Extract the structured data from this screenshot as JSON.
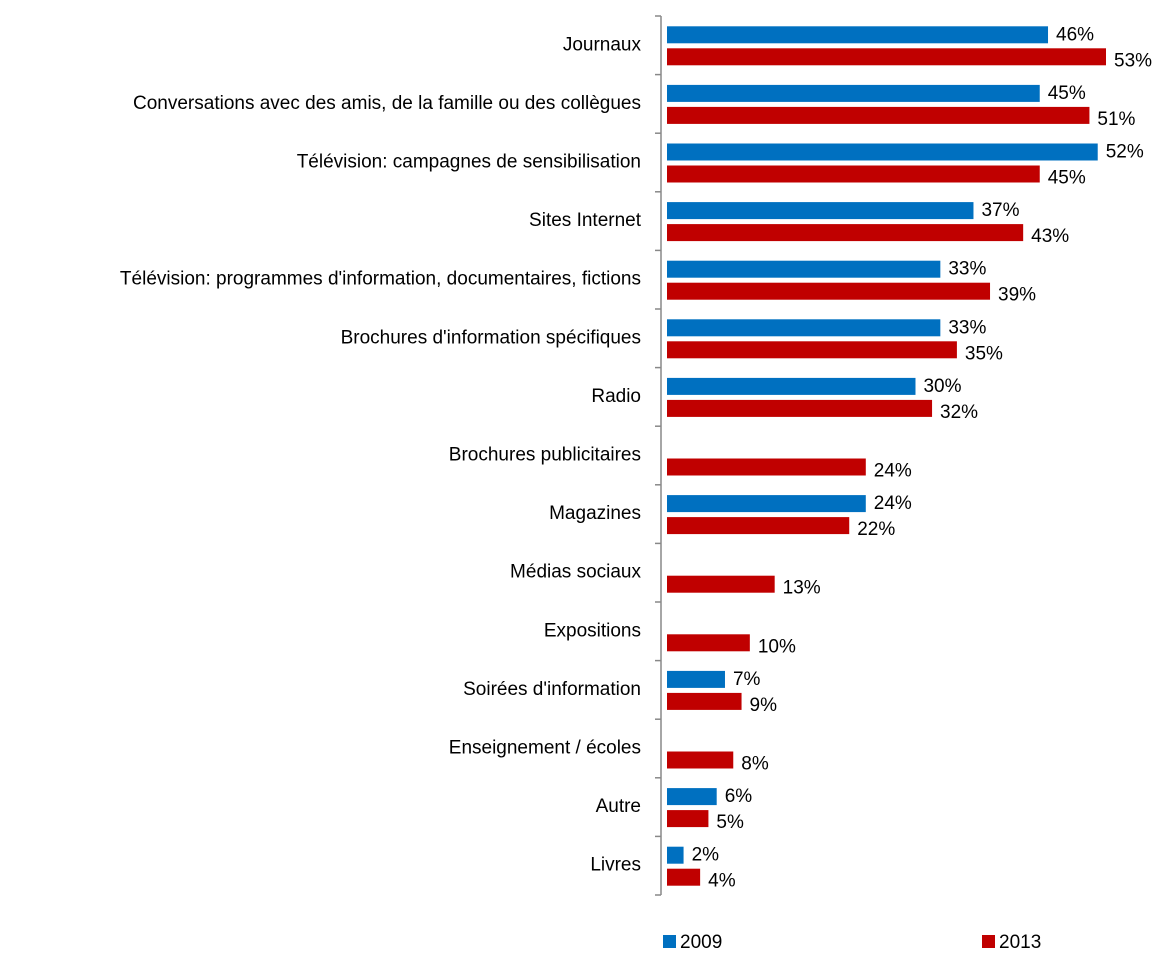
{
  "chart_data": {
    "type": "bar",
    "orientation": "horizontal",
    "categories": [
      "Journaux",
      "Conversations avec des amis, de la famille ou des collègues",
      "Télévision: campagnes de sensibilisation",
      "Sites Internet",
      "Télévision: programmes d'information, documentaires, fictions",
      "Brochures d'information spécifiques",
      "Radio",
      "Brochures publicitaires",
      "Magazines",
      "Médias sociaux",
      "Expositions",
      "Soirées d'information",
      "Enseignement / écoles",
      "Autre",
      "Livres"
    ],
    "series": [
      {
        "name": "2009",
        "color": "#0070c0",
        "values": [
          46,
          45,
          52,
          37,
          33,
          33,
          30,
          null,
          24,
          null,
          null,
          7,
          null,
          6,
          2
        ],
        "value_labels": [
          "46%",
          "45%",
          "52%",
          "37%",
          "33%",
          "33%",
          "30%",
          null,
          "24%",
          null,
          null,
          "7%",
          null,
          "6%",
          "2%"
        ]
      },
      {
        "name": "2013",
        "color": "#c00000",
        "values": [
          53,
          51,
          45,
          43,
          39,
          35,
          32,
          24,
          22,
          13,
          10,
          9,
          8,
          5,
          4
        ],
        "value_labels": [
          "53%",
          "51%",
          "45%",
          "43%",
          "39%",
          "35%",
          "32%",
          "24%",
          "22%",
          "13%",
          "10%",
          "9%",
          "8%",
          "5%",
          "4%"
        ]
      }
    ],
    "legend": "bottom"
  }
}
